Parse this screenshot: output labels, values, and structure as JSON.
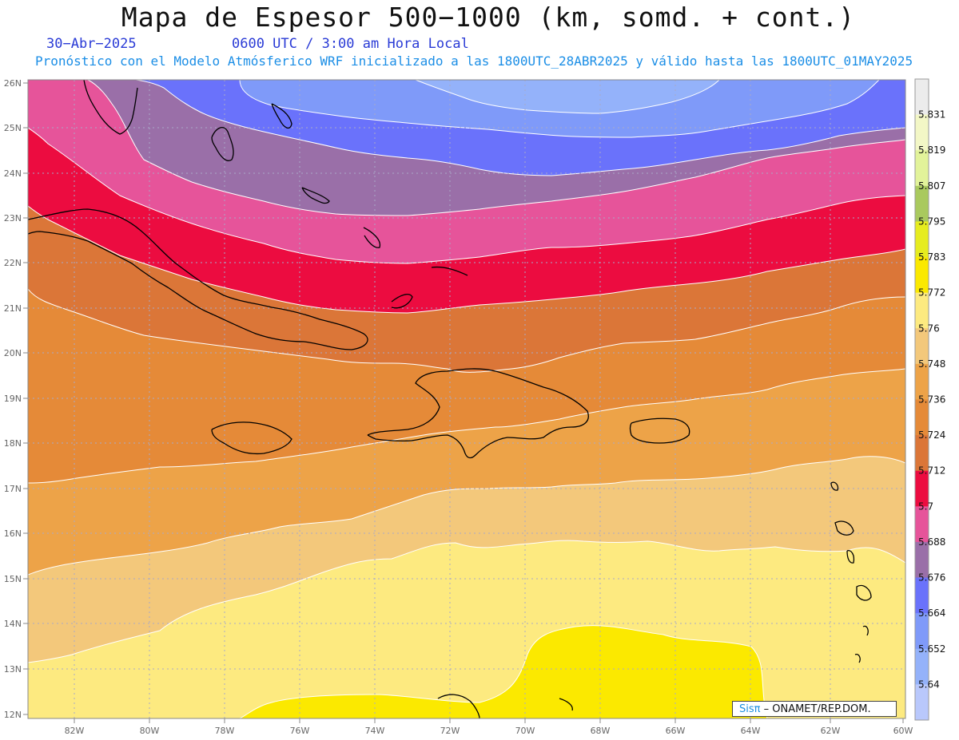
{
  "header": {
    "title": "Mapa de Espesor 500−1000 (km, somd. + cont.)",
    "date": "30−Abr−2025",
    "utc": "0600 UTC / 3:00 am Hora Local",
    "description": "Pronóstico con el Modelo Atmósferico WRF inicializado a las 1800UTC_28ABR2025 y válido hasta las  1800UTC_01MAY2025"
  },
  "axes": {
    "lat_ticks": [
      "26N",
      "25N",
      "24N",
      "23N",
      "22N",
      "21N",
      "20N",
      "19N",
      "18N",
      "17N",
      "16N",
      "15N",
      "14N",
      "13N",
      "12N"
    ],
    "lon_ticks": [
      "82W",
      "80W",
      "78W",
      "76W",
      "74W",
      "72W",
      "70W",
      "68W",
      "66W",
      "64W",
      "62W",
      "60W"
    ]
  },
  "legend": {
    "labels": [
      "5.831",
      "5.819",
      "5.807",
      "5.795",
      "5.783",
      "5.772",
      "5.76",
      "5.748",
      "5.736",
      "5.724",
      "5.712",
      "5.7",
      "5.688",
      "5.676",
      "5.664",
      "5.652",
      "5.64"
    ],
    "colors": [
      "#ececec",
      "#f3f7c6",
      "#e2f39a",
      "#a9c95e",
      "#e6ec1f",
      "#fbe900",
      "#fdea80",
      "#f3c87b",
      "#eda348",
      "#e58a38",
      "#db7638",
      "#ec0c40",
      "#e6549a",
      "#9a6fa8",
      "#6a72fb",
      "#7f9af9",
      "#94b2fa",
      "#b9c8fc"
    ]
  },
  "bands_colors": {
    "yellow": "#fbe900",
    "light_yellow": "#fdea80",
    "tan": "#f3c87b",
    "light_orange": "#eda348",
    "orange": "#e58a38",
    "dark_orange": "#db7638",
    "red": "#ec0c40",
    "pink": "#e6549a",
    "purple": "#9a6fa8",
    "blue": "#6a72fb",
    "med_blue": "#7f9af9",
    "light_blue": "#94b2fa"
  },
  "credit": {
    "sis": "Sisπ",
    "org": "– ONAMET/REP.DOM."
  }
}
